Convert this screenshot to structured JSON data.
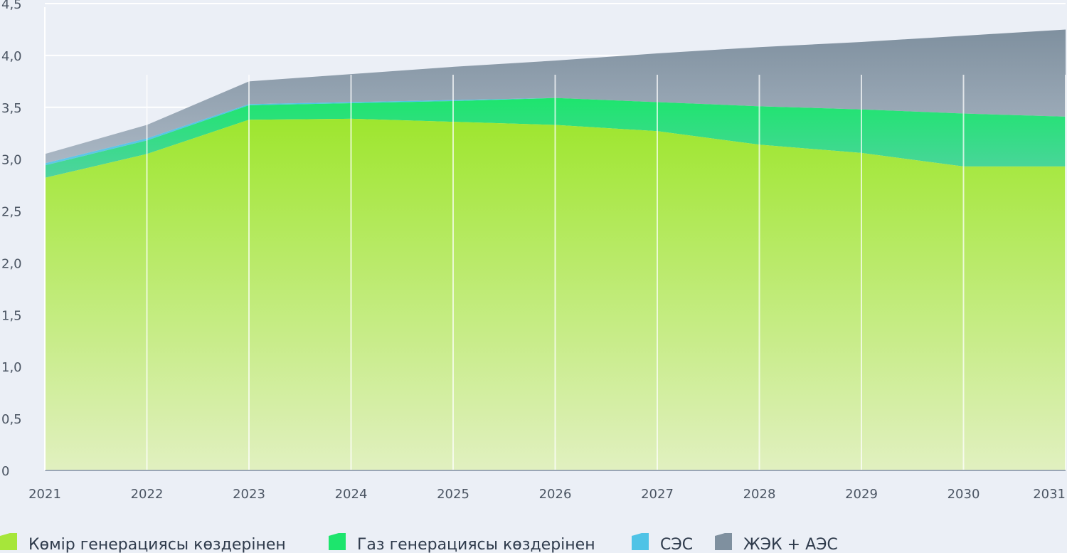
{
  "chart_data": {
    "type": "area",
    "stacked": true,
    "x": [
      "2021",
      "2022",
      "2023",
      "2024",
      "2025",
      "2026",
      "2027",
      "2028",
      "2029",
      "2030",
      "2031"
    ],
    "ylim": [
      0,
      4.5
    ],
    "yticks": [
      "0",
      "0,5",
      "1,0",
      "1,5",
      "2,0",
      "2,5",
      "3,0",
      "3,5",
      "4,0",
      "4,5"
    ],
    "grid": true,
    "legend_position": "bottom",
    "colors": {
      "background": "#ebeff6",
      "coal": "#a6e63a",
      "gas": "#1de56d",
      "solar": "#4fc3e6",
      "res_npp": "#7f909f",
      "axis": "#9aa6b5",
      "text": "#2f3b4c"
    },
    "series": [
      {
        "name": "Көмір генерациясы көздерінен",
        "color": "#a6e63a",
        "values": [
          2.82,
          3.05,
          3.38,
          3.39,
          3.36,
          3.33,
          3.27,
          3.14,
          3.06,
          2.93,
          2.93
        ]
      },
      {
        "name": "Газ генерациясы көздерінен",
        "color": "#1de56d",
        "values": [
          0.12,
          0.13,
          0.14,
          0.15,
          0.2,
          0.26,
          0.28,
          0.37,
          0.42,
          0.51,
          0.48
        ]
      },
      {
        "name": "СЭС",
        "color": "#4fc3e6",
        "values": [
          0.02,
          0.02,
          0.01,
          0.01,
          0.01,
          0.0,
          0.0,
          0.0,
          0.0,
          0.0,
          0.0
        ]
      },
      {
        "name": "ЖЭК + АЭС",
        "color": "#7f909f",
        "values": [
          0.09,
          0.13,
          0.22,
          0.27,
          0.32,
          0.36,
          0.47,
          0.57,
          0.65,
          0.75,
          0.84
        ]
      }
    ]
  }
}
